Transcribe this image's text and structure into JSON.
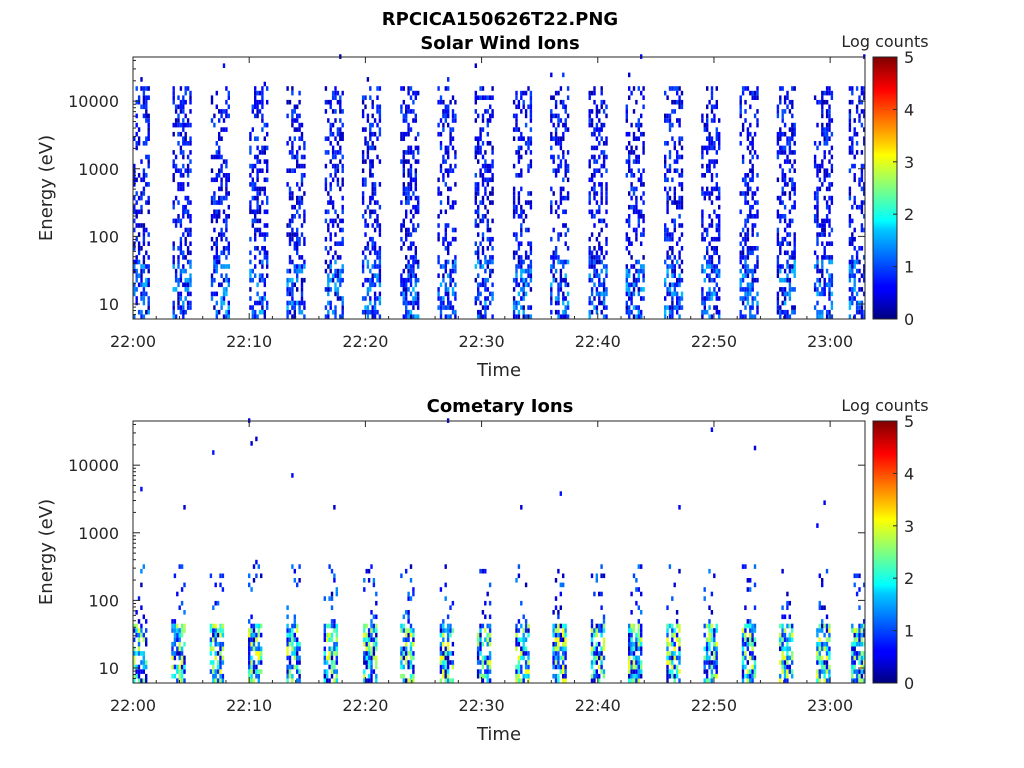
{
  "figure": {
    "title": "RPCICA150626T22.PNG"
  },
  "colors": {
    "bar": "jet colormap",
    "axis": "#262626"
  },
  "chart_data": [
    {
      "type": "heatmap",
      "title": "Solar Wind Ions",
      "xlabel": "Time",
      "ylabel": "Energy (eV)",
      "x_ticks": [
        "22:00",
        "22:10",
        "22:20",
        "22:30",
        "22:40",
        "22:50",
        "23:00"
      ],
      "y_ticks": [
        "10",
        "100",
        "1000",
        "10000"
      ],
      "y_scale": "log",
      "xlim": [
        "22:00",
        "23:03"
      ],
      "ylim": [
        6,
        45000
      ],
      "colorbar": {
        "label": "Log counts",
        "ticks": [
          "0",
          "1",
          "2",
          "3",
          "4",
          "5"
        ],
        "range": [
          0,
          5
        ]
      },
      "pattern": "vertical bursts about every 3.3 min; sparse counts from 10 eV to 15000 eV, mostly log counts 0 to 1",
      "burst_times_min": [
        0.6,
        4.2,
        7.5,
        10.8,
        14.0,
        17.3,
        20.5,
        23.8,
        27.0,
        30.2,
        33.5,
        36.7,
        40.0,
        43.2,
        46.5,
        49.7,
        53.0,
        56.2,
        59.4,
        62.4
      ],
      "burst_energy_range_eV": [
        6,
        15000
      ],
      "typical_log_counts": [
        0,
        1.5
      ]
    },
    {
      "type": "heatmap",
      "title": "Cometary Ions",
      "xlabel": "Time",
      "ylabel": "Energy (eV)",
      "x_ticks": [
        "22:00",
        "22:10",
        "22:20",
        "22:30",
        "22:40",
        "22:50",
        "23:00"
      ],
      "y_ticks": [
        "10",
        "100",
        "1000",
        "10000"
      ],
      "y_scale": "log",
      "xlim": [
        "22:00",
        "23:03"
      ],
      "ylim": [
        6,
        45000
      ],
      "colorbar": {
        "label": "Log counts",
        "ticks": [
          "0",
          "1",
          "2",
          "3",
          "4",
          "5"
        ],
        "range": [
          0,
          5
        ]
      },
      "pattern": "dense low-energy band below 45 eV with peaks up to log counts ~3; dispersed streaks up to ~300 eV; sparse points up to 20000 eV",
      "burst_times_min": [
        0.6,
        3.9,
        7.2,
        10.5,
        13.8,
        17.0,
        20.4,
        23.6,
        27.0,
        30.2,
        33.5,
        36.7,
        40.0,
        43.2,
        46.5,
        49.7,
        53.0,
        56.2,
        59.4,
        62.4
      ],
      "burst_energy_range_eV": [
        6,
        45
      ],
      "typical_log_counts": [
        0,
        3.2
      ]
    }
  ]
}
